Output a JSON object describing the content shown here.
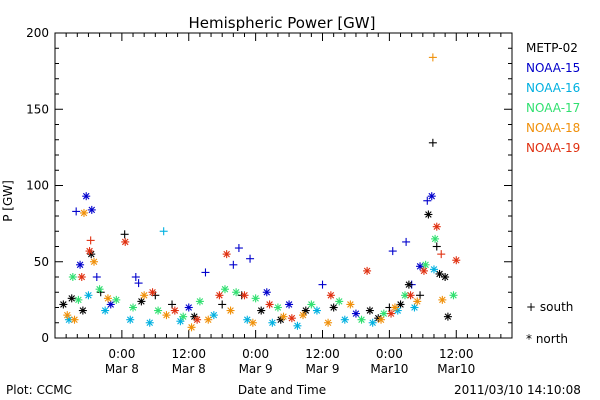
{
  "chart_data": {
    "type": "scatter",
    "title": "Hemispheric Power [GW]",
    "ylabel": "P [GW]",
    "xlabel": "Date and Time",
    "ylim": [
      0,
      200
    ],
    "y_ticks": [
      0,
      50,
      100,
      150,
      200
    ],
    "y_tick_labels": [
      "0",
      "50",
      "100",
      "150",
      "200"
    ],
    "x_range_hours": [
      -12,
      70
    ],
    "x_ticks": [
      {
        "hour": 0,
        "time": "0:00",
        "date": "Mar 8"
      },
      {
        "hour": 12,
        "time": "12:00",
        "date": "Mar 8"
      },
      {
        "hour": 24,
        "time": "0:00",
        "date": "Mar 9"
      },
      {
        "hour": 36,
        "time": "12:00",
        "date": "Mar 9"
      },
      {
        "hour": 48,
        "time": "0:00",
        "date": "Mar10"
      },
      {
        "hour": 60,
        "time": "12:00",
        "date": "Mar10"
      }
    ],
    "grid": false,
    "legend_position": "right",
    "series": [
      {
        "name": "METP-02",
        "color": "#000000"
      },
      {
        "name": "NOAA-15",
        "color": "#0000cc"
      },
      {
        "name": "NOAA-16",
        "color": "#00b0e0"
      },
      {
        "name": "NOAA-17",
        "color": "#30e070"
      },
      {
        "name": "NOAA-18",
        "color": "#f0900a"
      },
      {
        "name": "NOAA-19",
        "color": "#e03010"
      }
    ],
    "marker_key": [
      {
        "symbol": "+",
        "label": "south"
      },
      {
        "symbol": "*",
        "label": "north"
      }
    ],
    "points": [
      {
        "s": 1,
        "x": -8.2,
        "y": 83,
        "m": "+"
      },
      {
        "s": 1,
        "x": -6.4,
        "y": 93,
        "m": "*"
      },
      {
        "s": 1,
        "x": -5.4,
        "y": 84,
        "m": "*"
      },
      {
        "s": 1,
        "x": -7.5,
        "y": 48,
        "m": "*"
      },
      {
        "s": 1,
        "x": -4.5,
        "y": 40,
        "m": "+"
      },
      {
        "s": 1,
        "x": 2.5,
        "y": 40,
        "m": "+"
      },
      {
        "s": 1,
        "x": 3.0,
        "y": 36,
        "m": "+"
      },
      {
        "s": 1,
        "x": 15.0,
        "y": 43,
        "m": "+"
      },
      {
        "s": 1,
        "x": 20.0,
        "y": 48,
        "m": "+"
      },
      {
        "s": 1,
        "x": 21.0,
        "y": 59,
        "m": "+"
      },
      {
        "s": 1,
        "x": 23.0,
        "y": 52,
        "m": "+"
      },
      {
        "s": 1,
        "x": 26.0,
        "y": 30,
        "m": "*"
      },
      {
        "s": 1,
        "x": 36.0,
        "y": 35,
        "m": "+"
      },
      {
        "s": 1,
        "x": 48.6,
        "y": 57,
        "m": "+"
      },
      {
        "s": 1,
        "x": 51.0,
        "y": 63,
        "m": "+"
      },
      {
        "s": 1,
        "x": 52.0,
        "y": 35,
        "m": "+"
      },
      {
        "s": 1,
        "x": 53.5,
        "y": 47,
        "m": "*"
      },
      {
        "s": 1,
        "x": 54.8,
        "y": 90,
        "m": "+"
      },
      {
        "s": 1,
        "x": 55.6,
        "y": 93,
        "m": "*"
      },
      {
        "s": 1,
        "x": 12.0,
        "y": 20,
        "m": "*"
      },
      {
        "s": 1,
        "x": 30.0,
        "y": 22,
        "m": "*"
      },
      {
        "s": 1,
        "x": 42.0,
        "y": 16,
        "m": "*"
      },
      {
        "s": 1,
        "x": -2.0,
        "y": 22,
        "m": "*"
      },
      {
        "s": 0,
        "x": -5.5,
        "y": 55,
        "m": "*"
      },
      {
        "s": 0,
        "x": -3.8,
        "y": 30,
        "m": "+"
      },
      {
        "s": 0,
        "x": 0.5,
        "y": 68,
        "m": "+"
      },
      {
        "s": 0,
        "x": 6.0,
        "y": 28,
        "m": "+"
      },
      {
        "s": 0,
        "x": 9.0,
        "y": 22,
        "m": "+"
      },
      {
        "s": 0,
        "x": 21.5,
        "y": 28,
        "m": "+"
      },
      {
        "s": 0,
        "x": 33.0,
        "y": 18,
        "m": "*"
      },
      {
        "s": 0,
        "x": 44.5,
        "y": 18,
        "m": "*"
      },
      {
        "s": 0,
        "x": 48.0,
        "y": 20,
        "m": "+"
      },
      {
        "s": 0,
        "x": 51.5,
        "y": 35,
        "m": "*"
      },
      {
        "s": 0,
        "x": 53.5,
        "y": 28,
        "m": "+"
      },
      {
        "s": 0,
        "x": 55.0,
        "y": 81,
        "m": "*"
      },
      {
        "s": 0,
        "x": 55.8,
        "y": 128,
        "m": "+"
      },
      {
        "s": 0,
        "x": 56.5,
        "y": 60,
        "m": "+"
      },
      {
        "s": 0,
        "x": 57.0,
        "y": 42,
        "m": "*"
      },
      {
        "s": 0,
        "x": 58.0,
        "y": 40,
        "m": "*"
      },
      {
        "s": 0,
        "x": 58.5,
        "y": 14,
        "m": "*"
      },
      {
        "s": 0,
        "x": -10.5,
        "y": 22,
        "m": "*"
      },
      {
        "s": 0,
        "x": -9.0,
        "y": 26,
        "m": "*"
      },
      {
        "s": 0,
        "x": -7.0,
        "y": 18,
        "m": "*"
      },
      {
        "s": 0,
        "x": 3.5,
        "y": 24,
        "m": "*"
      },
      {
        "s": 0,
        "x": 13.0,
        "y": 14,
        "m": "*"
      },
      {
        "s": 0,
        "x": 18.0,
        "y": 22,
        "m": "+"
      },
      {
        "s": 0,
        "x": 25.0,
        "y": 18,
        "m": "*"
      },
      {
        "s": 0,
        "x": 28.5,
        "y": 12,
        "m": "*"
      },
      {
        "s": 0,
        "x": 38.0,
        "y": 20,
        "m": "*"
      },
      {
        "s": 0,
        "x": 46.0,
        "y": 13,
        "m": "*"
      },
      {
        "s": 0,
        "x": 50.0,
        "y": 22,
        "m": "*"
      },
      {
        "s": 2,
        "x": -9.5,
        "y": 12,
        "m": "*"
      },
      {
        "s": 2,
        "x": -6.0,
        "y": 28,
        "m": "*"
      },
      {
        "s": 2,
        "x": -3.0,
        "y": 18,
        "m": "*"
      },
      {
        "s": 2,
        "x": 1.5,
        "y": 12,
        "m": "*"
      },
      {
        "s": 2,
        "x": 5.0,
        "y": 10,
        "m": "*"
      },
      {
        "s": 2,
        "x": 7.5,
        "y": 70,
        "m": "+"
      },
      {
        "s": 2,
        "x": 10.5,
        "y": 11,
        "m": "*"
      },
      {
        "s": 2,
        "x": 16.5,
        "y": 15,
        "m": "*"
      },
      {
        "s": 2,
        "x": 22.5,
        "y": 12,
        "m": "*"
      },
      {
        "s": 2,
        "x": 27.0,
        "y": 10,
        "m": "*"
      },
      {
        "s": 2,
        "x": 31.5,
        "y": 8,
        "m": "*"
      },
      {
        "s": 2,
        "x": 35.0,
        "y": 18,
        "m": "*"
      },
      {
        "s": 2,
        "x": 40.0,
        "y": 12,
        "m": "*"
      },
      {
        "s": 2,
        "x": 45.0,
        "y": 10,
        "m": "*"
      },
      {
        "s": 2,
        "x": 49.5,
        "y": 18,
        "m": "*"
      },
      {
        "s": 2,
        "x": 52.5,
        "y": 20,
        "m": "*"
      },
      {
        "s": 2,
        "x": 56.0,
        "y": 45,
        "m": "*"
      },
      {
        "s": 3,
        "x": -8.8,
        "y": 40,
        "m": "*"
      },
      {
        "s": 3,
        "x": -7.8,
        "y": 25,
        "m": "*"
      },
      {
        "s": 3,
        "x": -4.0,
        "y": 32,
        "m": "*"
      },
      {
        "s": 3,
        "x": -1.0,
        "y": 25,
        "m": "*"
      },
      {
        "s": 3,
        "x": 2.0,
        "y": 20,
        "m": "*"
      },
      {
        "s": 3,
        "x": 6.5,
        "y": 18,
        "m": "*"
      },
      {
        "s": 3,
        "x": 11.0,
        "y": 14,
        "m": "*"
      },
      {
        "s": 3,
        "x": 14.0,
        "y": 24,
        "m": "*"
      },
      {
        "s": 3,
        "x": 18.5,
        "y": 32,
        "m": "*"
      },
      {
        "s": 3,
        "x": 20.5,
        "y": 30,
        "m": "*"
      },
      {
        "s": 3,
        "x": 24.0,
        "y": 26,
        "m": "*"
      },
      {
        "s": 3,
        "x": 28.0,
        "y": 20,
        "m": "*"
      },
      {
        "s": 3,
        "x": 34.0,
        "y": 22,
        "m": "*"
      },
      {
        "s": 3,
        "x": 39.0,
        "y": 24,
        "m": "*"
      },
      {
        "s": 3,
        "x": 43.0,
        "y": 12,
        "m": "*"
      },
      {
        "s": 3,
        "x": 47.0,
        "y": 16,
        "m": "*"
      },
      {
        "s": 3,
        "x": 50.8,
        "y": 28,
        "m": "*"
      },
      {
        "s": 3,
        "x": 54.5,
        "y": 48,
        "m": "*"
      },
      {
        "s": 3,
        "x": 56.2,
        "y": 65,
        "m": "*"
      },
      {
        "s": 3,
        "x": 59.5,
        "y": 28,
        "m": "*"
      },
      {
        "s": 4,
        "x": -9.8,
        "y": 15,
        "m": "*"
      },
      {
        "s": 4,
        "x": -8.5,
        "y": 12,
        "m": "*"
      },
      {
        "s": 4,
        "x": -6.8,
        "y": 82,
        "m": "*"
      },
      {
        "s": 4,
        "x": -5.0,
        "y": 50,
        "m": "*"
      },
      {
        "s": 4,
        "x": -2.5,
        "y": 26,
        "m": "*"
      },
      {
        "s": 4,
        "x": 4.0,
        "y": 28,
        "m": "*"
      },
      {
        "s": 4,
        "x": 8.0,
        "y": 15,
        "m": "*"
      },
      {
        "s": 4,
        "x": 12.5,
        "y": 7,
        "m": "*"
      },
      {
        "s": 4,
        "x": 15.5,
        "y": 12,
        "m": "*"
      },
      {
        "s": 4,
        "x": 19.5,
        "y": 18,
        "m": "*"
      },
      {
        "s": 4,
        "x": 23.5,
        "y": 10,
        "m": "*"
      },
      {
        "s": 4,
        "x": 29.0,
        "y": 14,
        "m": "*"
      },
      {
        "s": 4,
        "x": 32.5,
        "y": 15,
        "m": "*"
      },
      {
        "s": 4,
        "x": 37.0,
        "y": 10,
        "m": "*"
      },
      {
        "s": 4,
        "x": 41.0,
        "y": 22,
        "m": "*"
      },
      {
        "s": 4,
        "x": 46.5,
        "y": 12,
        "m": "*"
      },
      {
        "s": 4,
        "x": 49.0,
        "y": 20,
        "m": "*"
      },
      {
        "s": 4,
        "x": 53.0,
        "y": 24,
        "m": "*"
      },
      {
        "s": 4,
        "x": 55.8,
        "y": 184,
        "m": "+"
      },
      {
        "s": 4,
        "x": 57.5,
        "y": 25,
        "m": "*"
      },
      {
        "s": 5,
        "x": -7.2,
        "y": 40,
        "m": "*"
      },
      {
        "s": 5,
        "x": -5.6,
        "y": 64,
        "m": "+"
      },
      {
        "s": 5,
        "x": -5.8,
        "y": 57,
        "m": "*"
      },
      {
        "s": 5,
        "x": 0.6,
        "y": 63,
        "m": "*"
      },
      {
        "s": 5,
        "x": 5.5,
        "y": 30,
        "m": "*"
      },
      {
        "s": 5,
        "x": 9.5,
        "y": 18,
        "m": "*"
      },
      {
        "s": 5,
        "x": 13.5,
        "y": 12,
        "m": "*"
      },
      {
        "s": 5,
        "x": 17.5,
        "y": 28,
        "m": "*"
      },
      {
        "s": 5,
        "x": 18.8,
        "y": 55,
        "m": "*"
      },
      {
        "s": 5,
        "x": 22.0,
        "y": 28,
        "m": "*"
      },
      {
        "s": 5,
        "x": 26.5,
        "y": 22,
        "m": "*"
      },
      {
        "s": 5,
        "x": 30.5,
        "y": 13,
        "m": "*"
      },
      {
        "s": 5,
        "x": 37.5,
        "y": 28,
        "m": "*"
      },
      {
        "s": 5,
        "x": 44.0,
        "y": 44,
        "m": "*"
      },
      {
        "s": 5,
        "x": 48.3,
        "y": 16,
        "m": "*"
      },
      {
        "s": 5,
        "x": 51.8,
        "y": 28,
        "m": "*"
      },
      {
        "s": 5,
        "x": 54.2,
        "y": 44,
        "m": "*"
      },
      {
        "s": 5,
        "x": 56.5,
        "y": 73,
        "m": "*"
      },
      {
        "s": 5,
        "x": 57.3,
        "y": 55,
        "m": "+"
      },
      {
        "s": 5,
        "x": 60.0,
        "y": 51,
        "m": "*"
      }
    ]
  },
  "footer": {
    "plot_credit": "Plot: CCMC",
    "timestamp": "2011/03/10 14:10:08"
  }
}
